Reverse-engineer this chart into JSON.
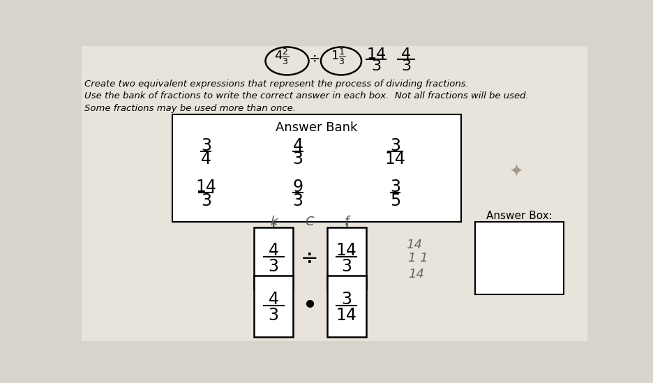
{
  "bg_color": "#d8d4cc",
  "paper_color": "#e8e4dc",
  "title_lines": [
    "Create two equivalent expressions that represent the process of dividing fractions.",
    "Use the bank of fractions to write the correct answer in each box.  Not all fractions will be used.",
    "Some fractions may be used more than once."
  ],
  "answer_bank_title": "Answer Bank",
  "answer_bank_fractions": [
    {
      "num": "3",
      "den": "4",
      "col": 0,
      "row": 0
    },
    {
      "num": "4",
      "den": "3",
      "col": 1,
      "row": 0
    },
    {
      "num": "3",
      "den": "14",
      "col": 2,
      "row": 0
    },
    {
      "num": "14",
      "den": "3",
      "col": 0,
      "row": 1
    },
    {
      "num": "9",
      "den": "3",
      "col": 1,
      "row": 1
    },
    {
      "num": "3",
      "den": "5",
      "col": 2,
      "row": 1
    }
  ],
  "answer_box_label": "Answer Box:",
  "row1_op": "÷",
  "row1_box1": {
    "num": "4",
    "den": "3"
  },
  "row1_box2": {
    "num": "14",
    "den": "3"
  },
  "row2_op": "•",
  "row2_box1": {
    "num": "4",
    "den": "3"
  },
  "row2_box2": {
    "num": "3",
    "den": "14"
  }
}
